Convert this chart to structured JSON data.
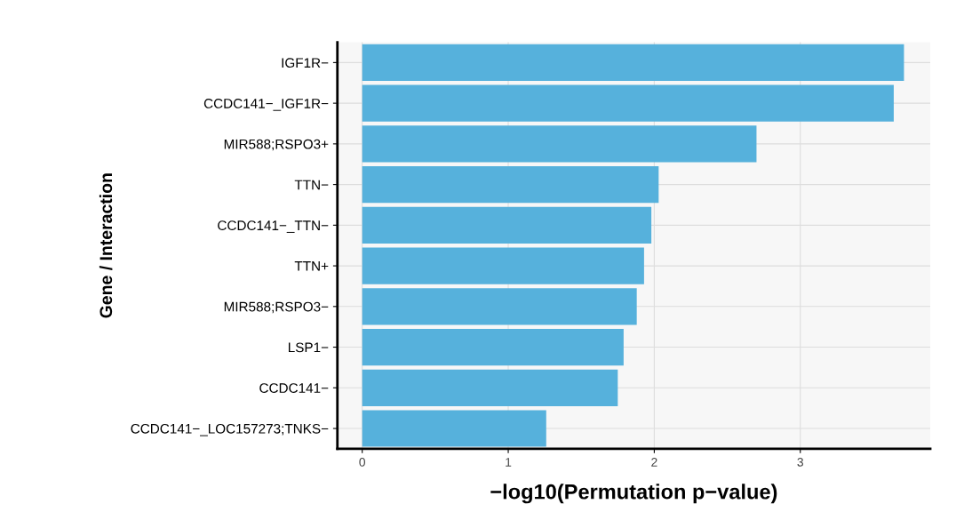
{
  "chart_data": {
    "type": "bar",
    "orientation": "horizontal",
    "xlabel": "−log10(Permutation p−value)",
    "ylabel": "Gene / Interaction",
    "categories": [
      "IGF1R−",
      "CCDC141−_IGF1R−",
      "MIR588;RSPO3+",
      "TTN−",
      "CCDC141−_TTN−",
      "TTN+",
      "MIR588;RSPO3−",
      "LSP1−",
      "CCDC141−",
      "CCDC141−_LOC157273;TNKS−"
    ],
    "values": [
      3.71,
      3.64,
      2.7,
      2.03,
      1.98,
      1.93,
      1.88,
      1.79,
      1.75,
      1.26
    ],
    "color": "#56b1dc",
    "xlim": [
      -0.17,
      3.89
    ],
    "xticks": [
      0,
      1,
      2,
      3
    ],
    "grid": true
  }
}
